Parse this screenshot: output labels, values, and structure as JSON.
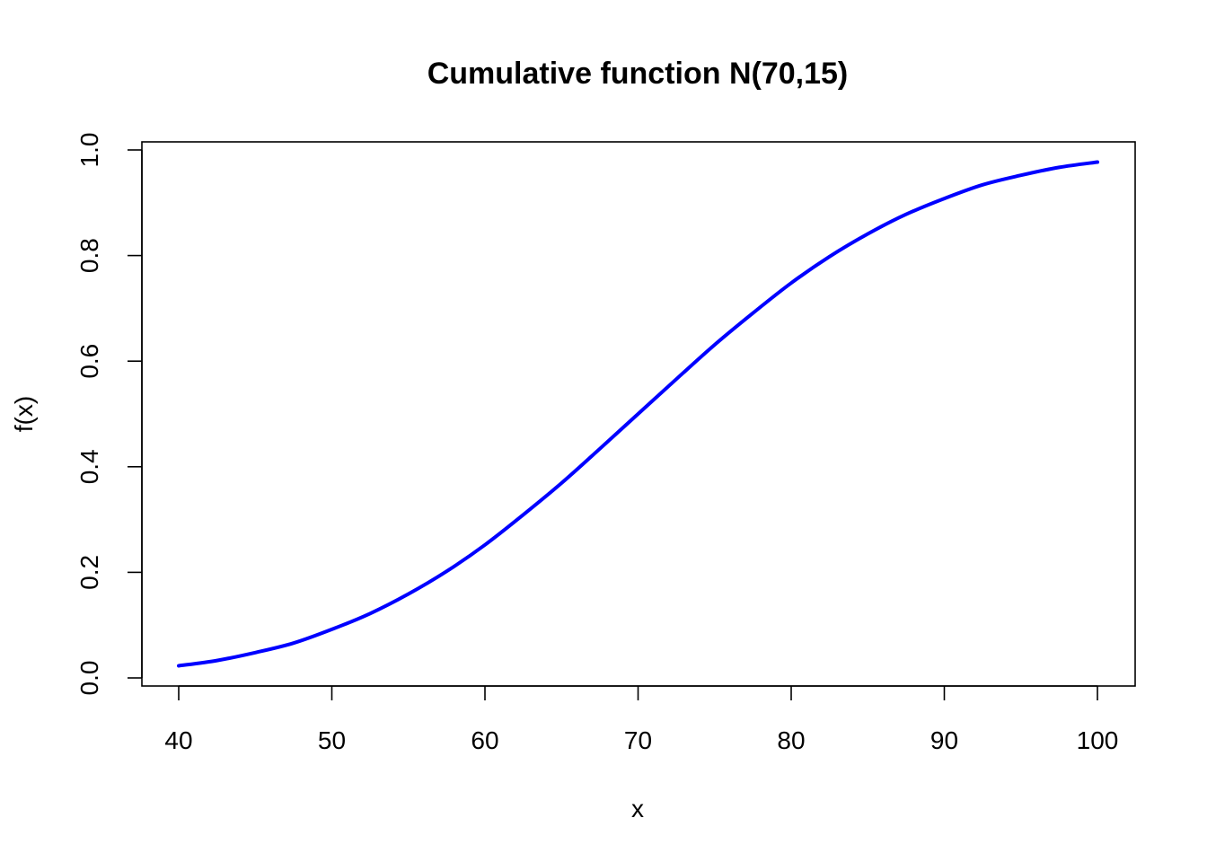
{
  "chart_data": {
    "type": "line",
    "title": "Cumulative function N(70,15)",
    "xlabel": "x",
    "ylabel": "f(x)",
    "xlim": [
      40,
      100
    ],
    "ylim": [
      0,
      1
    ],
    "x_ticks": [
      "40",
      "50",
      "60",
      "70",
      "80",
      "90",
      "100"
    ],
    "y_ticks": [
      "0.0",
      "0.2",
      "0.4",
      "0.6",
      "0.8",
      "1.0"
    ],
    "grid": false,
    "series": [
      {
        "color": "#0000ff",
        "x": [
          40,
          42.5,
          45,
          47.5,
          50,
          52.5,
          55,
          57.5,
          60,
          62.5,
          65,
          67.5,
          70,
          72.5,
          75,
          77.5,
          80,
          82.5,
          85,
          87.5,
          90,
          92.5,
          95,
          97.5,
          100
        ],
        "y": [
          0.023,
          0.033,
          0.048,
          0.066,
          0.092,
          0.122,
          0.159,
          0.202,
          0.252,
          0.309,
          0.369,
          0.434,
          0.5,
          0.566,
          0.631,
          0.691,
          0.748,
          0.798,
          0.841,
          0.878,
          0.908,
          0.934,
          0.952,
          0.967,
          0.977
        ]
      }
    ]
  }
}
